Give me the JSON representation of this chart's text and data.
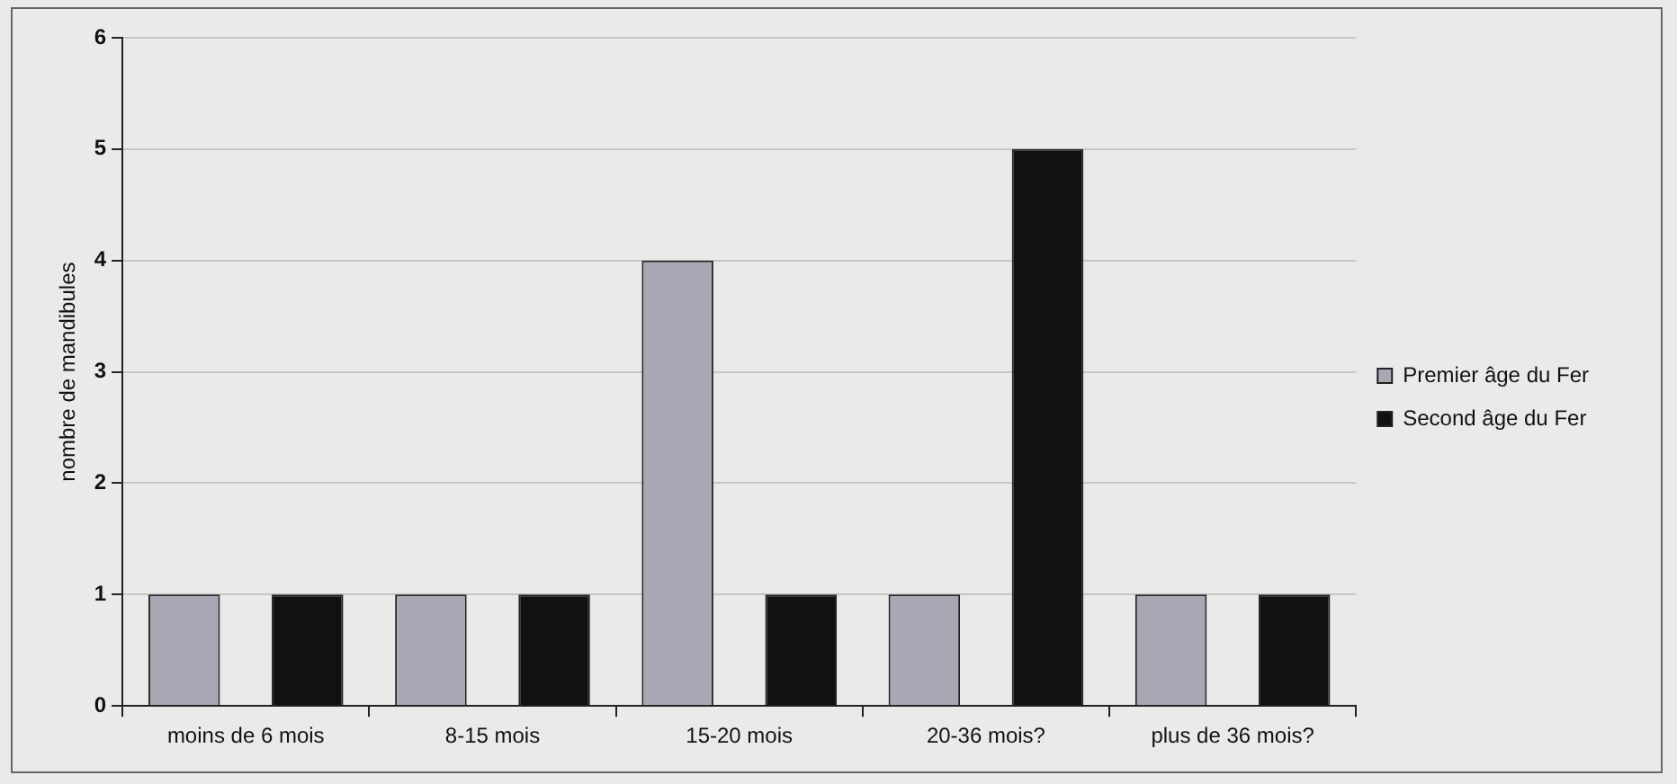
{
  "chart_data": {
    "type": "bar",
    "ylabel": "nombre de mandibules",
    "categories": [
      "moins de 6 mois",
      "8-15 mois",
      "15-20 mois",
      "20-36 mois?",
      "plus de 36 mois?"
    ],
    "series": [
      {
        "name": "Premier âge du Fer",
        "color": "#a9a7b3",
        "values": [
          1,
          1,
          4,
          1,
          1
        ]
      },
      {
        "name": "Second âge du Fer",
        "color": "#111111",
        "values": [
          1,
          1,
          1,
          5,
          1
        ]
      }
    ],
    "ylim": [
      0,
      6
    ],
    "yticks": [
      0,
      1,
      2,
      3,
      4,
      5,
      6
    ],
    "grid": "y",
    "legend": "right"
  }
}
